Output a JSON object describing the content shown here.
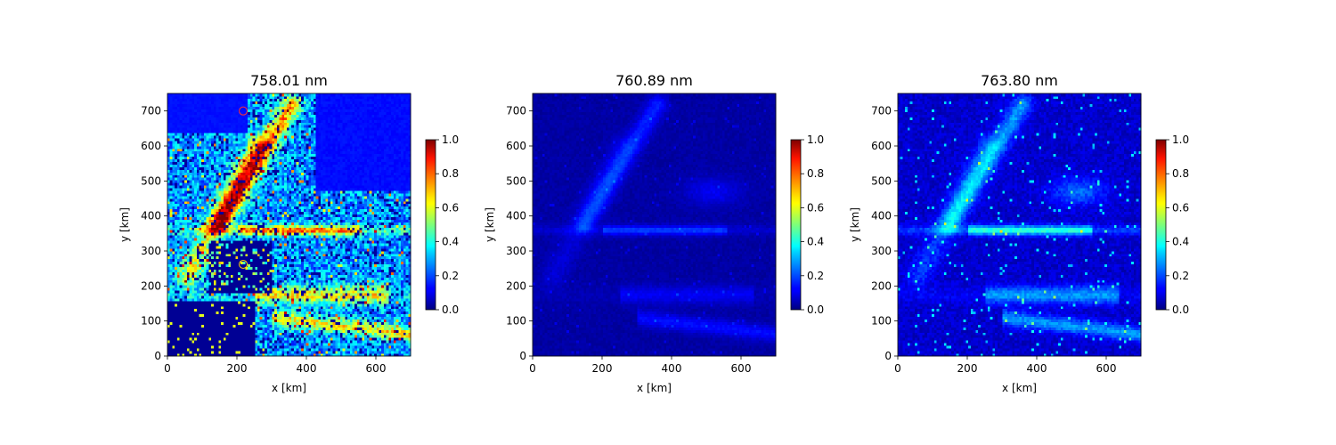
{
  "chart_data": [
    {
      "type": "heatmap",
      "title": "758.01 nm",
      "xlabel": "x [km]",
      "ylabel": "y [km]",
      "xlim": [
        0,
        700
      ],
      "ylim": [
        0,
        750
      ],
      "xticks": [
        0,
        200,
        400,
        600
      ],
      "yticks": [
        0,
        100,
        200,
        300,
        400,
        500,
        600,
        700
      ],
      "colorbar": {
        "min": 0.0,
        "max": 1.0,
        "ticks": [
          "0.0",
          "0.2",
          "0.4",
          "0.6",
          "0.8",
          "1.0"
        ],
        "colormap": "jet"
      },
      "pattern": "bright",
      "markers": [
        {
          "x": 218,
          "y": 700,
          "color": "#ff3030"
        },
        {
          "x": 218,
          "y": 550,
          "color": "#ff3030"
        },
        {
          "x": 218,
          "y": 262,
          "color": "#ffd000"
        }
      ]
    },
    {
      "type": "heatmap",
      "title": "760.89 nm",
      "xlabel": "x [km]",
      "ylabel": "y [km]",
      "xlim": [
        0,
        700
      ],
      "ylim": [
        0,
        750
      ],
      "xticks": [
        0,
        200,
        400,
        600
      ],
      "yticks": [
        0,
        100,
        200,
        300,
        400,
        500,
        600,
        700
      ],
      "colorbar": {
        "min": 0.0,
        "max": 1.0,
        "ticks": [
          "0.0",
          "0.2",
          "0.4",
          "0.6",
          "0.8",
          "1.0"
        ],
        "colormap": "jet"
      },
      "pattern": "dim",
      "markers": []
    },
    {
      "type": "heatmap",
      "title": "763.80 nm",
      "xlabel": "x [km]",
      "ylabel": "y [km]",
      "xlim": [
        0,
        700
      ],
      "ylim": [
        0,
        750
      ],
      "xticks": [
        0,
        200,
        400,
        600
      ],
      "yticks": [
        0,
        100,
        200,
        300,
        400,
        500,
        600,
        700
      ],
      "colorbar": {
        "min": 0.0,
        "max": 1.0,
        "ticks": [
          "0.0",
          "0.2",
          "0.4",
          "0.6",
          "0.8",
          "1.0"
        ],
        "colormap": "jet"
      },
      "pattern": "medium",
      "markers": []
    }
  ],
  "colors": {
    "background": "#ffffff",
    "axis": "#000000",
    "low": "#00007f",
    "high": "#7f0000"
  }
}
